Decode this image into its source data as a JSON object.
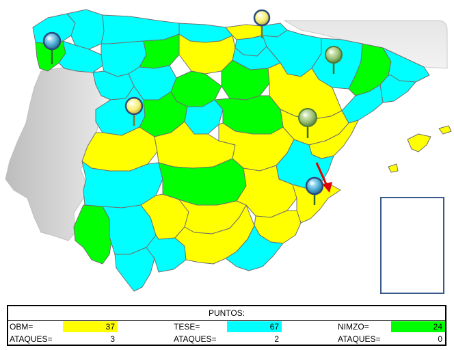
{
  "colors": {
    "obm": "#ffff00",
    "tese": "#00ffff",
    "nimzo": "#00ff00",
    "neutral": "#d4d4d4",
    "sea": "#ffffff",
    "arrow": "#e00000"
  },
  "scoreboard": {
    "title": "PUNTOS:",
    "players": [
      {
        "name": "OBM=",
        "points": "37",
        "attacks_label": "ATAQUES=",
        "attacks": "3",
        "color": "#ffff00"
      },
      {
        "name": "TESE=",
        "points": "67",
        "attacks_label": "ATAQUES=",
        "attacks": "2",
        "color": "#00ffff"
      },
      {
        "name": "NIMZO=",
        "points": "24",
        "attacks_label": "ATAQUES=",
        "attacks": "0",
        "color": "#00ff00"
      }
    ]
  },
  "pins": [
    {
      "name": "pin-coruna",
      "color": "blue-icon"
    },
    {
      "name": "pin-bizkaia",
      "color": "yellow-icon"
    },
    {
      "name": "pin-navarra",
      "color": "green-icon"
    },
    {
      "name": "pin-leon",
      "color": "yellow-icon"
    },
    {
      "name": "pin-teruel",
      "color": "green-icon"
    },
    {
      "name": "pin-alicante",
      "color": "blue-icon"
    }
  ]
}
